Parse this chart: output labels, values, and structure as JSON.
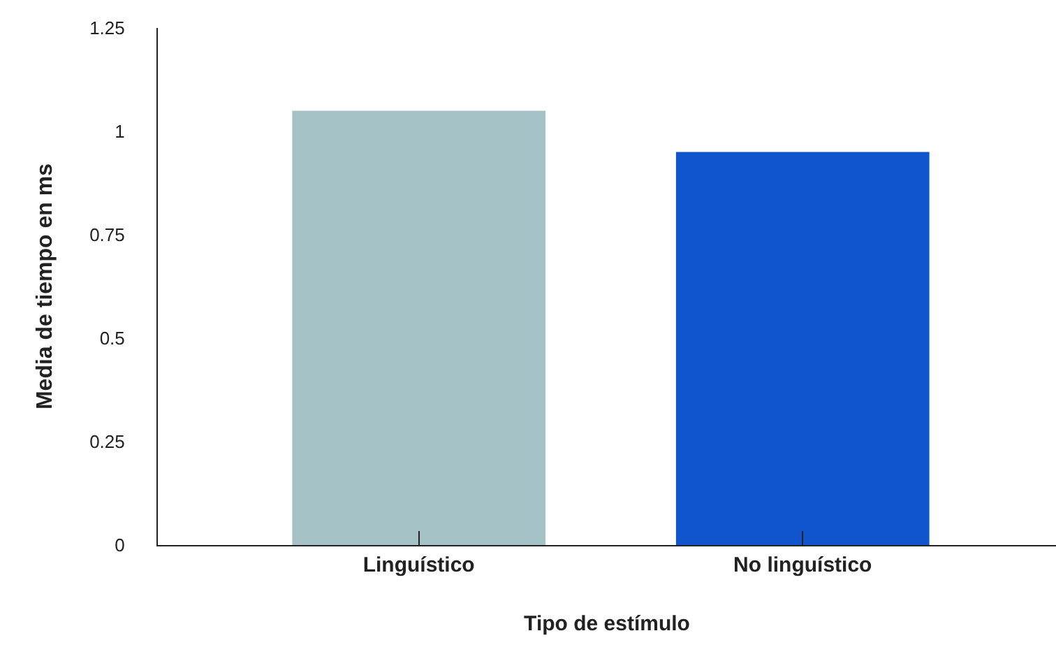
{
  "chart_data": {
    "type": "bar",
    "xlabel": "Tipo de estímulo",
    "ylabel": "Media de tiempo en ms",
    "categories": [
      "Linguístico",
      "No linguístico"
    ],
    "values": [
      1.05,
      0.95
    ],
    "colors": [
      "#a4c2c6",
      "#1155cc"
    ],
    "ylim": [
      0,
      1.25
    ],
    "yticks": [
      0,
      0.25,
      0.5,
      0.75,
      1,
      1.25
    ],
    "grid": false
  }
}
